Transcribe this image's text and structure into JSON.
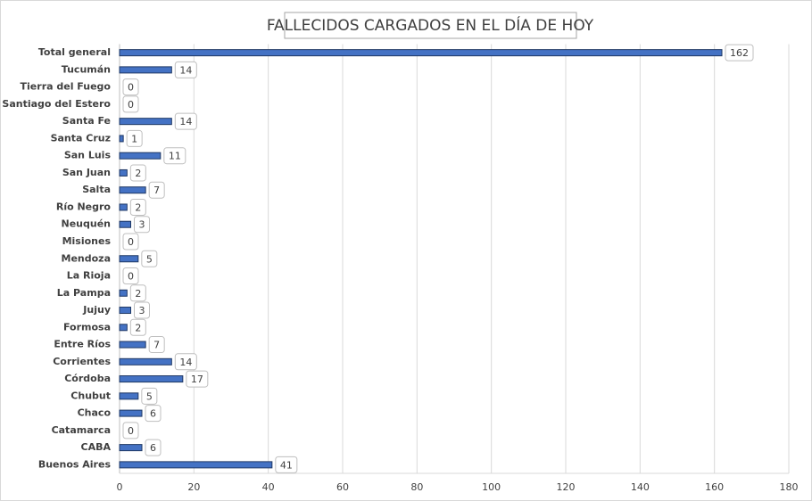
{
  "chart_data": {
    "type": "bar",
    "orientation": "horizontal",
    "title": "FALLECIDOS CARGADOS EN EL DÍA DE HOY",
    "categories": [
      "Total general",
      "Tucumán",
      "Tierra del Fuego",
      "Santiago del Estero",
      "Santa Fe",
      "Santa Cruz",
      "San Luis",
      "San Juan",
      "Salta",
      "Río Negro",
      "Neuquén",
      "Misiones",
      "Mendoza",
      "La Rioja",
      "La Pampa",
      "Jujuy",
      "Formosa",
      "Entre Ríos",
      "Corrientes",
      "Córdoba",
      "Chubut",
      "Chaco",
      "Catamarca",
      "CABA",
      "Buenos Aires"
    ],
    "values": [
      162,
      14,
      0,
      0,
      14,
      1,
      11,
      2,
      7,
      2,
      3,
      0,
      5,
      0,
      2,
      3,
      2,
      7,
      14,
      17,
      5,
      6,
      0,
      6,
      41
    ],
    "color": "#4472c4",
    "xlim": [
      0,
      180
    ],
    "xticks": [
      0,
      20,
      40,
      60,
      80,
      100,
      120,
      140,
      160,
      180
    ],
    "grid": true
  }
}
